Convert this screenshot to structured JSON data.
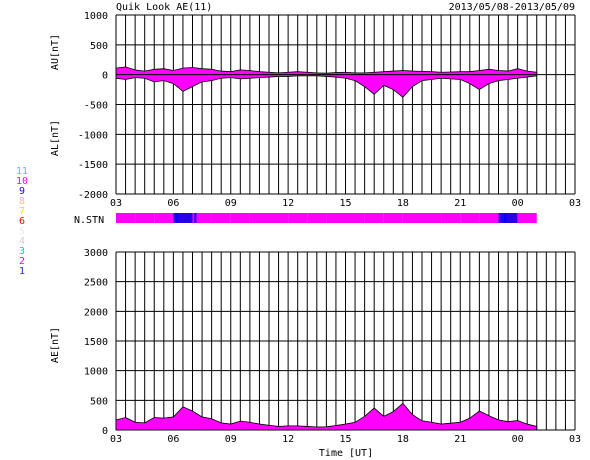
{
  "header": {
    "title": "Quik Look AE(11)",
    "date_range": "2013/05/08-2013/05/09"
  },
  "colors": {
    "fill": "#ff00ff",
    "stn_blue": "#0000ff",
    "grid": "#000000",
    "background": "#ffffff"
  },
  "legend": {
    "entries": [
      {
        "label": "11",
        "color": "#00e5ff"
      },
      {
        "label": "10",
        "color": "#ff00ff"
      },
      {
        "label": "9",
        "color": "#2b00e0"
      },
      {
        "label": "8",
        "color": "#ffb0b0"
      },
      {
        "label": "7",
        "color": "#e8e800"
      },
      {
        "label": "6",
        "color": "#ff0000"
      },
      {
        "label": "5",
        "color": "#e8e8e8"
      },
      {
        "label": "4",
        "color": "#cfcfcf"
      },
      {
        "label": "3",
        "color": "#00c8c8"
      },
      {
        "label": "2",
        "color": "#ff00ff"
      },
      {
        "label": "1",
        "color": "#2020ff"
      }
    ]
  },
  "chart_data": [
    {
      "type": "area",
      "ylabel_top": "AU[nT]",
      "ylabel_bottom": "AL[nT]",
      "ylim": [
        -2000,
        1000
      ],
      "yticks": [
        1000,
        500,
        0,
        -500,
        -1000,
        -1500,
        -2000
      ],
      "xlim": [
        0,
        24
      ],
      "xtick_labels": [
        "03",
        "06",
        "09",
        "12",
        "15",
        "18",
        "21",
        "00",
        "03"
      ],
      "grid": true,
      "series": [
        {
          "name": "AU",
          "x": [
            0,
            0.5,
            1,
            1.5,
            2,
            2.5,
            3,
            3.5,
            4,
            4.5,
            5,
            5.5,
            6,
            6.5,
            7,
            7.5,
            8,
            8.5,
            9,
            9.5,
            10,
            10.5,
            11,
            11.5,
            12,
            12.5,
            13,
            13.5,
            14,
            14.5,
            15,
            15.5,
            16,
            16.5,
            17,
            17.5,
            18,
            18.5,
            19,
            19.5,
            20,
            20.5,
            21,
            21.5,
            22
          ],
          "values": [
            110,
            130,
            80,
            60,
            90,
            100,
            70,
            110,
            120,
            100,
            90,
            60,
            50,
            80,
            70,
            50,
            40,
            30,
            40,
            50,
            40,
            30,
            25,
            35,
            40,
            30,
            30,
            40,
            50,
            60,
            70,
            60,
            55,
            50,
            40,
            45,
            50,
            50,
            70,
            90,
            70,
            60,
            100,
            60,
            40
          ]
        },
        {
          "name": "AL",
          "x": [
            0,
            0.5,
            1,
            1.5,
            2,
            2.5,
            3,
            3.5,
            4,
            4.5,
            5,
            5.5,
            6,
            6.5,
            7,
            7.5,
            8,
            8.5,
            9,
            9.5,
            10,
            10.5,
            11,
            11.5,
            12,
            12.5,
            13,
            13.5,
            14,
            14.5,
            15,
            15.5,
            16,
            16.5,
            17,
            17.5,
            18,
            18.5,
            19,
            19.5,
            20,
            20.5,
            21,
            21.5,
            22
          ],
          "values": [
            -60,
            -80,
            -50,
            -60,
            -120,
            -100,
            -150,
            -280,
            -200,
            -120,
            -100,
            -60,
            -50,
            -70,
            -60,
            -50,
            -40,
            -30,
            -30,
            -20,
            -20,
            -20,
            -30,
            -40,
            -60,
            -100,
            -200,
            -330,
            -180,
            -250,
            -380,
            -200,
            -100,
            -80,
            -60,
            -70,
            -80,
            -150,
            -250,
            -150,
            -100,
            -80,
            -60,
            -40,
            -20
          ]
        }
      ]
    },
    {
      "type": "bar",
      "ylabel": "N.STN",
      "xlim": [
        0,
        24
      ],
      "values_x": [
        0.5,
        1.5,
        2.5,
        3.5,
        4.5,
        5.5,
        6.5,
        7.5,
        8.5,
        9.5,
        10.5,
        11.5,
        12.5,
        13.5,
        14.5,
        15.5,
        16.5,
        17.5,
        18.5,
        19.5,
        20.5,
        21.5
      ],
      "values": [
        10,
        10,
        10,
        9,
        10,
        10,
        10,
        10,
        10,
        10,
        10,
        10,
        10,
        10,
        10,
        10,
        10,
        10,
        10,
        10,
        9,
        10
      ],
      "markers_x": [
        3.15,
        4.15,
        20.35
      ]
    },
    {
      "type": "area",
      "ylabel": "AE[nT]",
      "xlabel": "Time [UT]",
      "ylim": [
        0,
        3000
      ],
      "yticks": [
        3000,
        2500,
        2000,
        1500,
        1000,
        500,
        0
      ],
      "xlim": [
        0,
        24
      ],
      "xtick_labels": [
        "03",
        "06",
        "09",
        "12",
        "15",
        "18",
        "21",
        "00",
        "03"
      ],
      "grid": true,
      "series": [
        {
          "name": "AE",
          "x": [
            0,
            0.5,
            1,
            1.5,
            2,
            2.5,
            3,
            3.5,
            4,
            4.5,
            5,
            5.5,
            6,
            6.5,
            7,
            7.5,
            8,
            8.5,
            9,
            9.5,
            10,
            10.5,
            11,
            11.5,
            12,
            12.5,
            13,
            13.5,
            14,
            14.5,
            15,
            15.5,
            16,
            16.5,
            17,
            17.5,
            18,
            18.5,
            19,
            19.5,
            20,
            20.5,
            21,
            21.5,
            22
          ],
          "values": [
            170,
            210,
            130,
            120,
            210,
            200,
            220,
            390,
            320,
            220,
            190,
            120,
            100,
            150,
            130,
            100,
            80,
            60,
            70,
            70,
            60,
            50,
            55,
            75,
            100,
            130,
            230,
            370,
            230,
            310,
            450,
            260,
            155,
            130,
            100,
            115,
            130,
            200,
            320,
            240,
            170,
            140,
            160,
            100,
            60
          ]
        }
      ]
    }
  ]
}
